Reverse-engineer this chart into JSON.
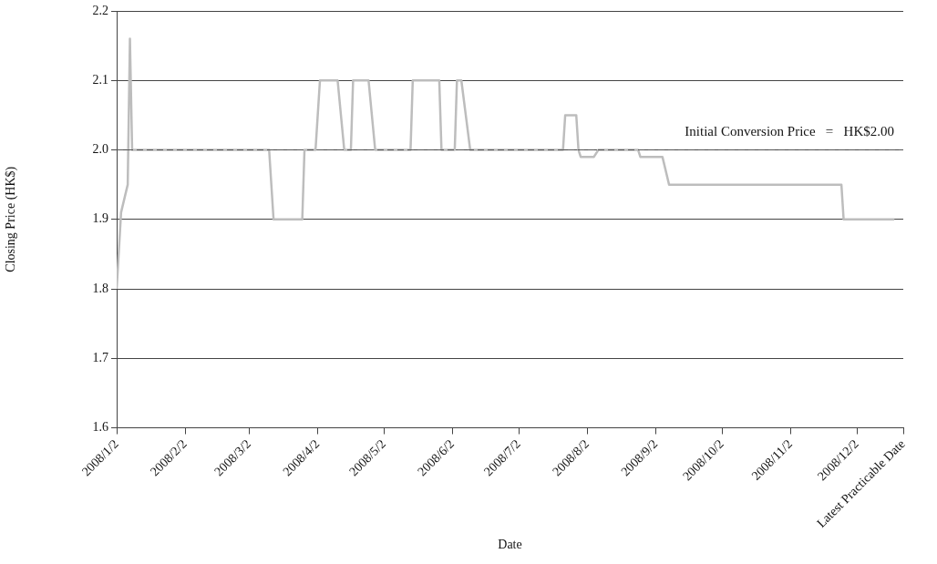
{
  "chart_data": {
    "type": "line",
    "xlabel": "Date",
    "ylabel": "Closing Price (HK$)",
    "x": [
      "2008-01-02",
      "2008-01-04",
      "2008-01-07",
      "2008-01-08",
      "2008-01-09",
      "2008-03-11",
      "2008-03-13",
      "2008-03-26",
      "2008-03-27",
      "2008-04-01",
      "2008-04-02",
      "2008-04-03",
      "2008-04-11",
      "2008-04-14",
      "2008-04-17",
      "2008-04-18",
      "2008-04-25",
      "2008-04-28",
      "2008-05-14",
      "2008-05-15",
      "2008-05-27",
      "2008-05-28",
      "2008-06-03",
      "2008-06-04",
      "2008-06-06",
      "2008-06-10",
      "2008-07-22",
      "2008-07-23",
      "2008-07-28",
      "2008-07-29",
      "2008-07-30",
      "2008-08-05",
      "2008-08-07",
      "2008-08-25",
      "2008-08-26",
      "2008-09-05",
      "2008-09-08",
      "2008-11-25",
      "2008-11-26",
      "2008-12-19"
    ],
    "series": [
      {
        "color": "#bdbdbd",
        "values": [
          1.8,
          1.91,
          1.95,
          2.16,
          2.0,
          2.0,
          1.9,
          1.9,
          2.0,
          2.0,
          2.05,
          2.1,
          2.1,
          2.0,
          2.0,
          2.1,
          2.1,
          2.0,
          2.0,
          2.1,
          2.1,
          2.0,
          2.0,
          2.1,
          2.1,
          2.0,
          2.0,
          2.05,
          2.05,
          2.0,
          1.99,
          1.99,
          2.0,
          2.0,
          1.99,
          1.99,
          1.95,
          1.95,
          1.9,
          1.9
        ]
      }
    ],
    "xlim": [
      "2008-01-02",
      "2008-12-23"
    ],
    "xticks": [
      {
        "value": "2008-01-02",
        "label": "2008/1/2"
      },
      {
        "value": "2008-02-02",
        "label": "2008/2/2"
      },
      {
        "value": "2008-03-02",
        "label": "2008/3/2"
      },
      {
        "value": "2008-04-02",
        "label": "2008/4/2"
      },
      {
        "value": "2008-05-02",
        "label": "2008/5/2"
      },
      {
        "value": "2008-06-02",
        "label": "2008/6/2"
      },
      {
        "value": "2008-07-02",
        "label": "2008/7/2"
      },
      {
        "value": "2008-08-02",
        "label": "2008/8/2"
      },
      {
        "value": "2008-09-02",
        "label": "2008/9/2"
      },
      {
        "value": "2008-10-02",
        "label": "2008/10/2"
      },
      {
        "value": "2008-11-02",
        "label": "2008/11/2"
      },
      {
        "value": "2008-12-02",
        "label": "2008/12/2"
      },
      {
        "value": "2008-12-23",
        "label": "Latest Practicable Date"
      }
    ],
    "ylim": [
      1.6,
      2.2
    ],
    "yticks": [
      1.6,
      1.7,
      1.8,
      1.9,
      {
        "value": 2,
        "label": "2.0"
      },
      2.1,
      2.2
    ],
    "ref_lines": [
      {
        "axis": "y",
        "value": 2,
        "label": "Initial Conversion Price   =   HK$2.00",
        "color": "#555555",
        "line_style": "dashed"
      }
    ],
    "grid": "y",
    "legend": false,
    "marker": "none",
    "line_style": "solid"
  }
}
